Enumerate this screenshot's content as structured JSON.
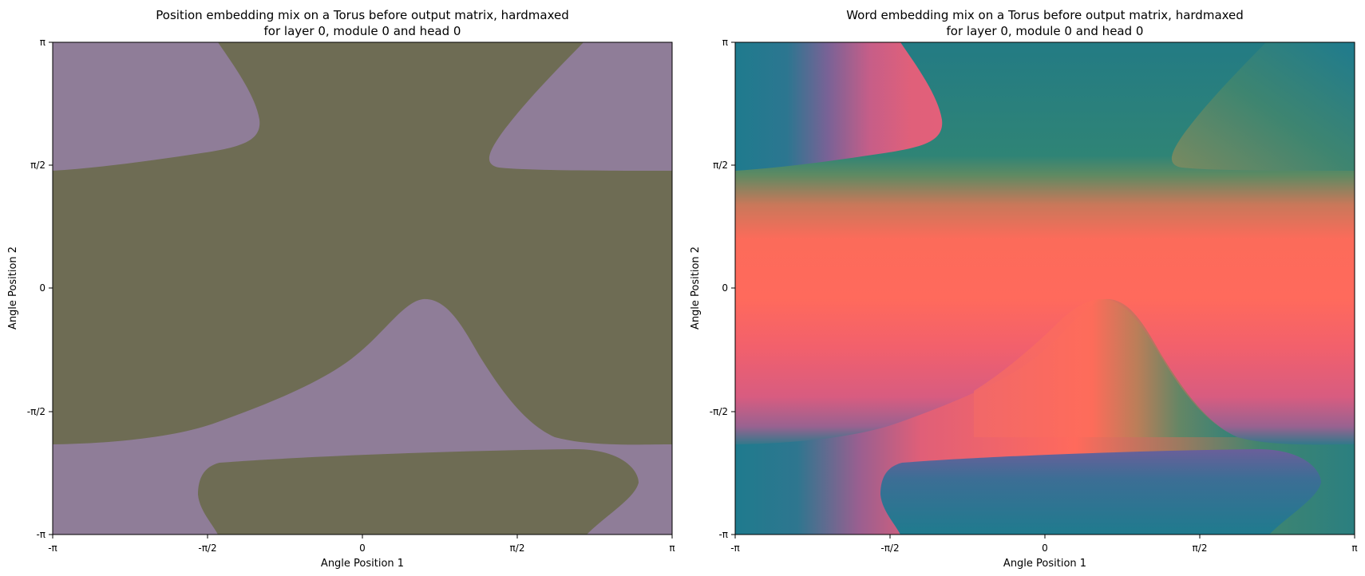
{
  "chart_data": [
    {
      "type": "heatmap",
      "title_line1": "Position embedding mix on a Torus before output matrix, hardmaxed",
      "title_line2": "for layer 0, module 0 and head 0",
      "xlabel": "Angle Position 1",
      "ylabel": "Angle Position 2",
      "xlim": [
        "-π",
        "π"
      ],
      "ylim": [
        "-π",
        "π"
      ],
      "xticks": [
        "-π",
        "-π/2",
        "0",
        "π/2",
        "π"
      ],
      "yticks": [
        "-π",
        "-π/2",
        "0",
        "π/2",
        "π"
      ],
      "colors": {
        "region_a": "#8f7d98",
        "region_b": "#6e6c54"
      },
      "grid": false
    },
    {
      "type": "heatmap",
      "title_line1": "Word embedding mix on a Torus before output matrix, hardmaxed",
      "title_line2": "for layer 0, module 0 and head 0",
      "xlabel": "Angle Position 1",
      "ylabel": "Angle Position 2",
      "xlim": [
        "-π",
        "π"
      ],
      "ylim": [
        "-π",
        "π"
      ],
      "xticks": [
        "-π",
        "-π/2",
        "0",
        "π/2",
        "π"
      ],
      "yticks": [
        "-π",
        "-π/2",
        "0",
        "π/2",
        "π"
      ],
      "colors": {
        "teal": "#1f7b8e",
        "green": "#4b8a6b",
        "pink": "#e0607a",
        "coral": "#ff6a5a",
        "purple": "#6a5f9a"
      },
      "grid": false
    }
  ]
}
